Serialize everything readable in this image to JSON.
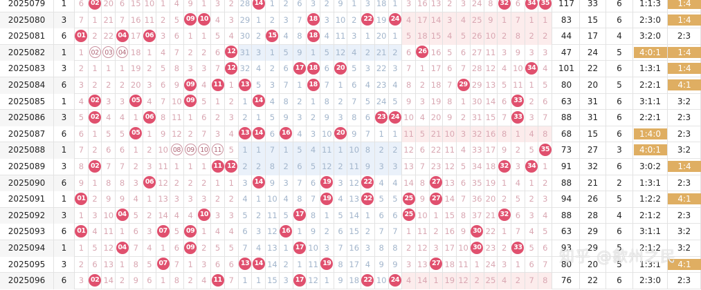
{
  "colors": {
    "hit": "#e0506e",
    "highlight": "#dfae62",
    "zone2_miss": "#a3b6cc",
    "zone13_miss": "#d9a7b2"
  },
  "watermark": "知乎 @歙州之民",
  "rows": [
    {
      "period": "2025079",
      "c2": "1",
      "cells": [
        "6",
        "02",
        "20",
        "6",
        "15",
        "10",
        "1",
        "4",
        "9",
        "1",
        "3",
        "2",
        "28",
        "14",
        "1",
        "2",
        "6",
        "3",
        "2",
        "9",
        "1",
        "3",
        "18",
        "1",
        "3",
        "16",
        "13",
        "2",
        "3",
        "24",
        "8",
        "32",
        "6",
        "34",
        "35"
      ],
      "hits": [
        2,
        14,
        32,
        34,
        35
      ],
      "outline": [],
      "stats": [
        "117",
        "33",
        "6",
        "1:1:3",
        "1:4"
      ],
      "zone_hl": false,
      "oe_hl": true
    },
    {
      "period": "2025080",
      "c2": "3",
      "cells": [
        "7",
        "1",
        "21",
        "7",
        "16",
        "11",
        "2",
        "5",
        "09",
        "10",
        "4",
        "3",
        "29",
        "1",
        "2",
        "3",
        "7",
        "18",
        "3",
        "10",
        "2",
        "22",
        "19",
        "24",
        "4",
        "17",
        "14",
        "3",
        "4",
        "25",
        "9",
        "1",
        "7",
        "1",
        "1"
      ],
      "hits": [
        9,
        10,
        18,
        22,
        24
      ],
      "outline": [],
      "stats": [
        "83",
        "15",
        "6",
        "2:3:0",
        "1:4"
      ],
      "zone_hl": false,
      "oe_hl": true
    },
    {
      "period": "2025081",
      "c2": "6",
      "cells": [
        "01",
        "2",
        "22",
        "04",
        "17",
        "06",
        "3",
        "6",
        "1",
        "1",
        "5",
        "4",
        "30",
        "2",
        "15",
        "4",
        "8",
        "18",
        "4",
        "11",
        "3",
        "1",
        "20",
        "1",
        "5",
        "18",
        "15",
        "4",
        "5",
        "26",
        "10",
        "2",
        "8",
        "2",
        "2"
      ],
      "hits": [
        1,
        4,
        6,
        15,
        18
      ],
      "outline": [],
      "stats": [
        "44",
        "17",
        "4",
        "3:2:0",
        "2:3"
      ],
      "zone_hl": false,
      "oe_hl": false
    },
    {
      "period": "2025082",
      "c2": "1",
      "cells": [
        "1",
        "02",
        "03",
        "04",
        "18",
        "1",
        "4",
        "7",
        "2",
        "2",
        "6",
        "12",
        "31",
        "3",
        "1",
        "5",
        "9",
        "1",
        "5",
        "12",
        "4",
        "2",
        "21",
        "2",
        "6",
        "26",
        "16",
        "5",
        "6",
        "27",
        "11",
        "3",
        "9",
        "3",
        "3"
      ],
      "hits": [
        12,
        26
      ],
      "outline": [
        2,
        3,
        4
      ],
      "stats": [
        "47",
        "24",
        "5",
        "4:0:1",
        "1:4"
      ],
      "zone_hl": true,
      "oe_hl": true
    },
    {
      "period": "2025083",
      "c2": "3",
      "cells": [
        "2",
        "1",
        "1",
        "1",
        "19",
        "2",
        "5",
        "8",
        "3",
        "3",
        "7",
        "12",
        "32",
        "4",
        "2",
        "6",
        "17",
        "18",
        "6",
        "20",
        "5",
        "3",
        "22",
        "3",
        "7",
        "1",
        "17",
        "6",
        "7",
        "28",
        "12",
        "4",
        "10",
        "34",
        "4"
      ],
      "hits": [
        12,
        17,
        18,
        20,
        34
      ],
      "outline": [],
      "stats": [
        "101",
        "22",
        "6",
        "1:3:1",
        "1:4"
      ],
      "zone_hl": false,
      "oe_hl": true
    },
    {
      "period": "2025084",
      "c2": "6",
      "cells": [
        "3",
        "2",
        "2",
        "2",
        "20",
        "3",
        "6",
        "9",
        "09",
        "4",
        "11",
        "1",
        "13",
        "5",
        "3",
        "7",
        "1",
        "18",
        "7",
        "1",
        "6",
        "4",
        "23",
        "4",
        "8",
        "2",
        "18",
        "7",
        "29",
        "29",
        "13",
        "5",
        "11",
        "1",
        "5"
      ],
      "hits": [
        9,
        11,
        13,
        18,
        29
      ],
      "outline": [],
      "stats": [
        "80",
        "20",
        "5",
        "2:2:1",
        "4:1"
      ],
      "zone_hl": false,
      "oe_hl": true
    },
    {
      "period": "2025085",
      "c2": "1",
      "cells": [
        "4",
        "02",
        "3",
        "3",
        "05",
        "4",
        "7",
        "10",
        "09",
        "5",
        "1",
        "2",
        "1",
        "14",
        "4",
        "8",
        "2",
        "1",
        "8",
        "2",
        "7",
        "5",
        "24",
        "5",
        "9",
        "3",
        "19",
        "8",
        "1",
        "30",
        "14",
        "6",
        "33",
        "2",
        "6"
      ],
      "hits": [
        2,
        5,
        9,
        14,
        33
      ],
      "outline": [],
      "stats": [
        "63",
        "31",
        "6",
        "3:1:1",
        "3:2"
      ],
      "zone_hl": false,
      "oe_hl": false
    },
    {
      "period": "2025086",
      "c2": "3",
      "cells": [
        "5",
        "02",
        "4",
        "4",
        "1",
        "06",
        "8",
        "11",
        "1",
        "6",
        "2",
        "3",
        "2",
        "1",
        "5",
        "9",
        "3",
        "2",
        "9",
        "3",
        "8",
        "6",
        "23",
        "24",
        "10",
        "4",
        "20",
        "9",
        "2",
        "31",
        "15",
        "7",
        "33",
        "3",
        "7"
      ],
      "hits": [
        2,
        6,
        23,
        24,
        33
      ],
      "outline": [],
      "stats": [
        "88",
        "31",
        "6",
        "2:2:1",
        "2:3"
      ],
      "zone_hl": false,
      "oe_hl": false
    },
    {
      "period": "2025087",
      "c2": "6",
      "cells": [
        "6",
        "1",
        "5",
        "5",
        "05",
        "1",
        "9",
        "12",
        "2",
        "7",
        "3",
        "4",
        "13",
        "14",
        "6",
        "16",
        "4",
        "3",
        "10",
        "20",
        "9",
        "7",
        "1",
        "1",
        "11",
        "5",
        "21",
        "10",
        "3",
        "32",
        "16",
        "8",
        "1",
        "4",
        "8"
      ],
      "hits": [
        5,
        13,
        14,
        16,
        20
      ],
      "outline": [],
      "stats": [
        "68",
        "15",
        "6",
        "1:4:0",
        "2:3"
      ],
      "zone_hl": true,
      "oe_hl": false
    },
    {
      "period": "2025088",
      "c2": "1",
      "cells": [
        "7",
        "2",
        "6",
        "6",
        "1",
        "2",
        "10",
        "08",
        "09",
        "10",
        "11",
        "5",
        "1",
        "1",
        "7",
        "1",
        "5",
        "4",
        "11",
        "1",
        "10",
        "8",
        "2",
        "2",
        "12",
        "6",
        "22",
        "11",
        "4",
        "33",
        "17",
        "9",
        "2",
        "5",
        "35"
      ],
      "hits": [
        35
      ],
      "outline": [
        8,
        9,
        10,
        11
      ],
      "stats": [
        "73",
        "27",
        "3",
        "4:0:1",
        "3:2"
      ],
      "zone_hl": true,
      "oe_hl": false
    },
    {
      "period": "2025089",
      "c2": "3",
      "cells": [
        "8",
        "02",
        "7",
        "7",
        "2",
        "3",
        "11",
        "1",
        "1",
        "1",
        "11",
        "12",
        "2",
        "2",
        "8",
        "2",
        "6",
        "5",
        "12",
        "2",
        "11",
        "9",
        "3",
        "3",
        "13",
        "7",
        "23",
        "12",
        "5",
        "34",
        "18",
        "32",
        "3",
        "34",
        "1"
      ],
      "hits": [
        2,
        11,
        12,
        32,
        34
      ],
      "outline": [],
      "stats": [
        "91",
        "32",
        "6",
        "3:0:2",
        "1:4"
      ],
      "zone_hl": false,
      "oe_hl": true
    },
    {
      "period": "2025090",
      "c2": "6",
      "cells": [
        "9",
        "1",
        "8",
        "8",
        "3",
        "06",
        "12",
        "2",
        "2",
        "2",
        "1",
        "1",
        "3",
        "14",
        "9",
        "3",
        "7",
        "6",
        "19",
        "3",
        "12",
        "22",
        "4",
        "4",
        "14",
        "8",
        "27",
        "13",
        "6",
        "35",
        "19",
        "1",
        "4",
        "1",
        "2"
      ],
      "hits": [
        6,
        14,
        19,
        22,
        27
      ],
      "outline": [],
      "stats": [
        "88",
        "21",
        "2",
        "1:3:1",
        "2:3"
      ],
      "zone_hl": false,
      "oe_hl": false
    },
    {
      "period": "2025091",
      "c2": "1",
      "cells": [
        "01",
        "2",
        "9",
        "9",
        "4",
        "1",
        "13",
        "3",
        "3",
        "3",
        "2",
        "2",
        "4",
        "1",
        "10",
        "4",
        "8",
        "7",
        "19",
        "4",
        "13",
        "22",
        "5",
        "5",
        "25",
        "9",
        "27",
        "14",
        "7",
        "36",
        "20",
        "2",
        "5",
        "2",
        "3"
      ],
      "hits": [
        1,
        19,
        22,
        25,
        27
      ],
      "outline": [],
      "stats": [
        "94",
        "26",
        "5",
        "1:2:2",
        "4:1"
      ],
      "zone_hl": false,
      "oe_hl": true
    },
    {
      "period": "2025092",
      "c2": "3",
      "cells": [
        "1",
        "3",
        "10",
        "04",
        "5",
        "2",
        "14",
        "4",
        "4",
        "10",
        "3",
        "3",
        "5",
        "2",
        "11",
        "5",
        "17",
        "8",
        "1",
        "5",
        "14",
        "1",
        "6",
        "6",
        "25",
        "10",
        "1",
        "15",
        "8",
        "37",
        "21",
        "32",
        "6",
        "3",
        "4"
      ],
      "hits": [
        4,
        10,
        17,
        25,
        32
      ],
      "outline": [],
      "stats": [
        "88",
        "28",
        "4",
        "2:1:2",
        "2:3"
      ],
      "zone_hl": false,
      "oe_hl": false
    },
    {
      "period": "2025093",
      "c2": "6",
      "cells": [
        "01",
        "4",
        "11",
        "1",
        "6",
        "3",
        "07",
        "5",
        "09",
        "1",
        "4",
        "4",
        "6",
        "3",
        "12",
        "16",
        "1",
        "9",
        "2",
        "6",
        "15",
        "2",
        "7",
        "7",
        "1",
        "11",
        "2",
        "16",
        "9",
        "30",
        "22",
        "1",
        "7",
        "4",
        "5"
      ],
      "hits": [
        1,
        7,
        9,
        16,
        30
      ],
      "outline": [],
      "stats": [
        "63",
        "29",
        "6",
        "3:1:1",
        "3:2"
      ],
      "zone_hl": false,
      "oe_hl": false
    },
    {
      "period": "2025094",
      "c2": "1",
      "cells": [
        "1",
        "5",
        "12",
        "04",
        "7",
        "4",
        "1",
        "6",
        "09",
        "2",
        "5",
        "5",
        "7",
        "4",
        "13",
        "1",
        "17",
        "10",
        "3",
        "7",
        "16",
        "3",
        "8",
        "8",
        "2",
        "12",
        "3",
        "17",
        "10",
        "30",
        "23",
        "2",
        "33",
        "5",
        "6"
      ],
      "hits": [
        4,
        9,
        17,
        30,
        33
      ],
      "outline": [],
      "stats": [
        "93",
        "29",
        "5",
        "2:1:2",
        "3:2"
      ],
      "zone_hl": false,
      "oe_hl": false
    },
    {
      "period": "2025095",
      "c2": "3",
      "cells": [
        "2",
        "6",
        "13",
        "1",
        "8",
        "5",
        "07",
        "7",
        "1",
        "3",
        "6",
        "6",
        "13",
        "14",
        "14",
        "2",
        "1",
        "11",
        "19",
        "8",
        "17",
        "4",
        "9",
        "9",
        "3",
        "13",
        "27",
        "18",
        "11",
        "1",
        "24",
        "3",
        "1",
        "6",
        "7"
      ],
      "hits": [
        7,
        13,
        14,
        19,
        27
      ],
      "outline": [],
      "stats": [
        "80",
        "20",
        "5",
        "1:3:1",
        "4:1"
      ],
      "zone_hl": false,
      "oe_hl": true
    },
    {
      "period": "2025096",
      "c2": "6",
      "cells": [
        "3",
        "02",
        "14",
        "2",
        "9",
        "6",
        "1",
        "8",
        "2",
        "4",
        "11",
        "7",
        "1",
        "1",
        "15",
        "3",
        "17",
        "12",
        "1",
        "9",
        "18",
        "22",
        "10",
        "24",
        "4",
        "14",
        "1",
        "19",
        "12",
        "2",
        "25",
        "4",
        "2",
        "7",
        "8"
      ],
      "hits": [
        2,
        11,
        17,
        22,
        24
      ],
      "outline": [],
      "stats": [
        "76",
        "22",
        "6",
        "2:3:0",
        "2:3"
      ],
      "zone_hl": false,
      "oe_hl": false
    }
  ]
}
